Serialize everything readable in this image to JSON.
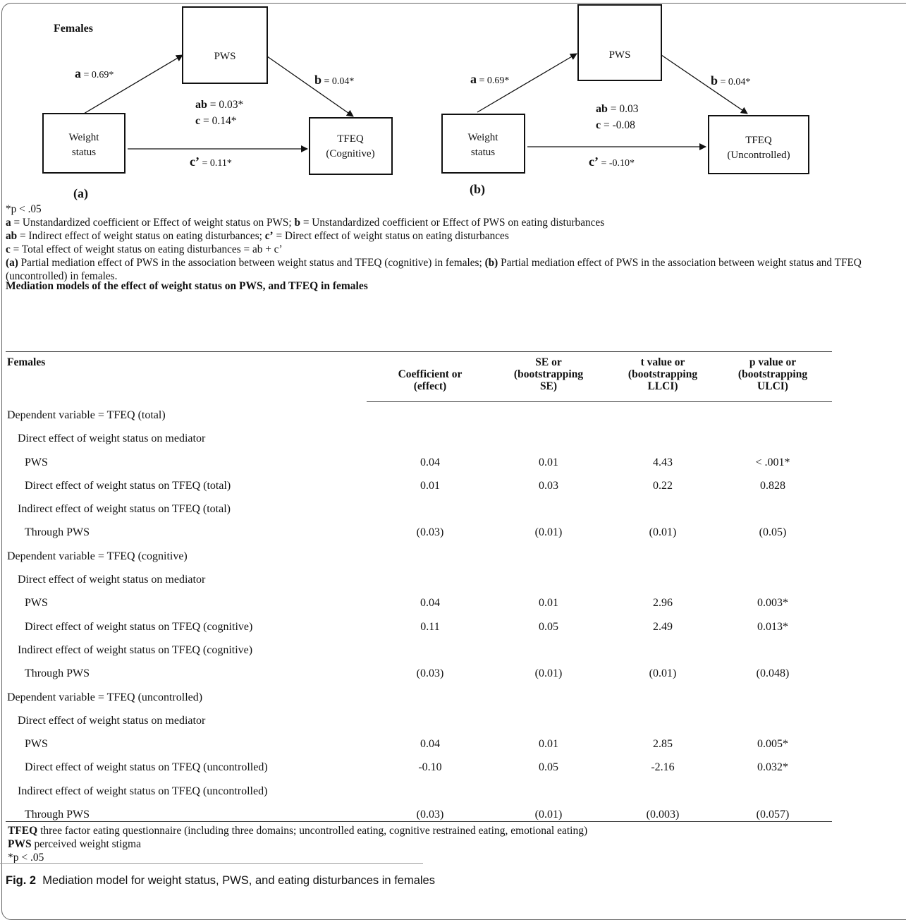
{
  "diagram": {
    "group_label": "Females",
    "a": {
      "pws": "PWS",
      "weight_line1": "Weight",
      "weight_line2": "status",
      "tfeq_line1": "TFEQ",
      "tfeq_line2": "(Cognitive)",
      "a_sym": "a",
      "a_val": " = 0.69*",
      "b_sym": "b",
      "b_val": " = 0.04*",
      "ab_sym": "ab",
      "ab_val": " = 0.03*",
      "c_sym": "c",
      "c_val": " = 0.14*",
      "cp_sym": "c’",
      "cp_val": " = 0.11*",
      "label": "(a)"
    },
    "b": {
      "pws": "PWS",
      "weight_line1": "Weight",
      "weight_line2": "status",
      "tfeq_line1": "TFEQ",
      "tfeq_line2": "(Uncontrolled)",
      "a_sym": "a",
      "a_val": " = 0.69*",
      "b_sym": "b",
      "b_val": " = 0.04*",
      "ab_sym": "ab",
      "ab_val": " = 0.03",
      "c_sym": "c",
      "c_val": " = -0.08",
      "cp_sym": "c’",
      "cp_val": " = -0.10*",
      "label": "(b)"
    }
  },
  "notes": {
    "sig": "*p < .05",
    "l1_a": "a",
    "l1_t1": " = Unstandardized coefficient or Effect of weight status on PWS; ",
    "l1_b": "b",
    "l1_t2": " = Unstandardized coefficient or Effect of PWS on eating disturbances",
    "l2_ab": "ab",
    "l2_t1": " = Indirect effect of weight status on eating disturbances; ",
    "l2_cp": "c’",
    "l2_t2": " = Direct effect of weight status on eating disturbances",
    "l3_c": "c",
    "l3_t1": " = Total effect of weight status on eating disturbances = ab + c’",
    "l4_a": "(a)",
    "l4_t1": " Partial mediation effect of PWS in the association between weight status and TFEQ (cognitive) in females; ",
    "l4_b": "(b)",
    "l4_t2": " Partial mediation effect of PWS in the association between weight status and TFEQ (uncontrolled) in females."
  },
  "table": {
    "title": "Mediation models of the effect of weight status on PWS, and TFEQ in females",
    "headers": {
      "col0": "Females",
      "col1_l1": "Coefficient or",
      "col1_l2": "(effect)",
      "col2_l1": "SE or",
      "col2_l2": "(bootstrapping",
      "col2_l3": "SE)",
      "col3_l1": "t value or",
      "col3_l2": "(bootstrapping",
      "col3_l3": "LLCI)",
      "col4_l1": "p value or",
      "col4_l2": "(bootstrapping",
      "col4_l3": "ULCI)"
    },
    "rows": [
      {
        "label": "Dependent variable = TFEQ (total)",
        "v1": "",
        "v2": "",
        "v3": "",
        "v4": ""
      },
      {
        "label": "Direct effect of weight status on mediator",
        "v1": "",
        "v2": "",
        "v3": "",
        "v4": ""
      },
      {
        "label": "PWS",
        "v1": "0.04",
        "v2": "0.01",
        "v3": "4.43",
        "v4": "< .001*"
      },
      {
        "label": "Direct effect of weight status on TFEQ (total)",
        "v1": "0.01",
        "v2": "0.03",
        "v3": "0.22",
        "v4": "0.828"
      },
      {
        "label": "Indirect effect of weight status on TFEQ (total)",
        "v1": "",
        "v2": "",
        "v3": "",
        "v4": ""
      },
      {
        "label": "Through PWS",
        "v1": "(0.03)",
        "v2": "(0.01)",
        "v3": "(0.01)",
        "v4": "(0.05)"
      },
      {
        "label": "Dependent variable = TFEQ (cognitive)",
        "v1": "",
        "v2": "",
        "v3": "",
        "v4": ""
      },
      {
        "label": "Direct effect of weight status on mediator",
        "v1": "",
        "v2": "",
        "v3": "",
        "v4": ""
      },
      {
        "label": "PWS",
        "v1": "0.04",
        "v2": "0.01",
        "v3": "2.96",
        "v4": "0.003*"
      },
      {
        "label": "Direct effect of weight status on TFEQ (cognitive)",
        "v1": "0.11",
        "v2": "0.05",
        "v3": "2.49",
        "v4": "0.013*"
      },
      {
        "label": "Indirect effect of weight status on TFEQ (cognitive)",
        "v1": "",
        "v2": "",
        "v3": "",
        "v4": ""
      },
      {
        "label": "Through PWS",
        "v1": "(0.03)",
        "v2": "(0.01)",
        "v3": "(0.01)",
        "v4": "(0.048)"
      },
      {
        "label": "Dependent variable = TFEQ (uncontrolled)",
        "v1": "",
        "v2": "",
        "v3": "",
        "v4": ""
      },
      {
        "label": "Direct effect of weight status on mediator",
        "v1": "",
        "v2": "",
        "v3": "",
        "v4": ""
      },
      {
        "label": "PWS",
        "v1": "0.04",
        "v2": "0.01",
        "v3": "2.85",
        "v4": "0.005*"
      },
      {
        "label": "Direct effect of weight status on TFEQ (uncontrolled)",
        "v1": "-0.10",
        "v2": "0.05",
        "v3": "-2.16",
        "v4": "0.032*"
      },
      {
        "label": "Indirect effect of weight status on TFEQ (uncontrolled)",
        "v1": "",
        "v2": "",
        "v3": "",
        "v4": ""
      },
      {
        "label": "Through PWS",
        "v1": "(0.03)",
        "v2": "(0.01)",
        "v3": "(0.003)",
        "v4": "(0.057)"
      }
    ]
  },
  "footnotes": {
    "tfeq_abbr": "TFEQ",
    "tfeq_def": " three factor eating questionnaire (including three domains; uncontrolled eating, cognitive restrained eating, emotional eating)",
    "pws_abbr": "PWS",
    "pws_def": " perceived weight stigma",
    "sig": "*p < .05"
  },
  "caption": {
    "label": "Fig. 2",
    "text": "  Mediation model for weight status, PWS, and eating disturbances in females"
  }
}
